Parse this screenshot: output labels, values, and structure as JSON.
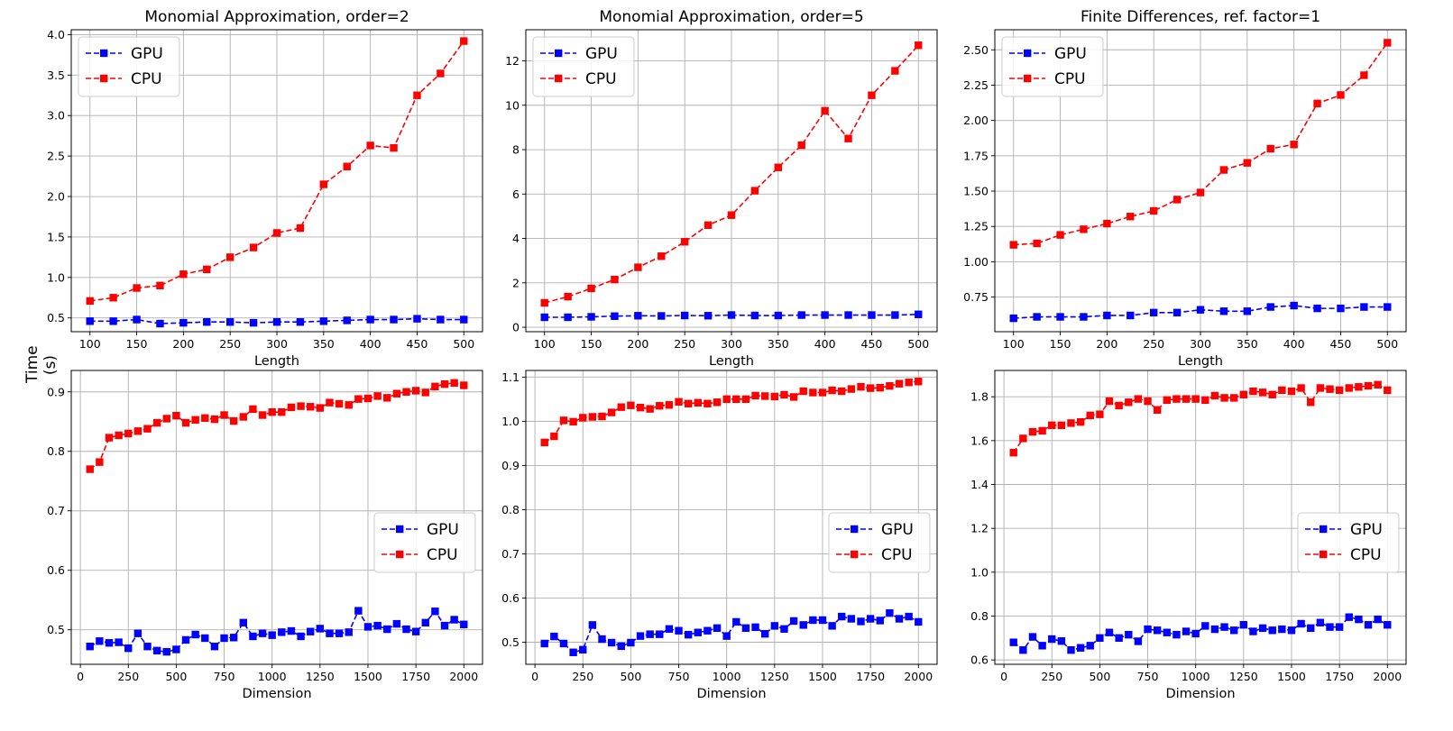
{
  "figure": {
    "ylabel": "Time (s)",
    "colors": {
      "gpu": "#0000ff",
      "cpu": "#ff0000",
      "grid": "#b0b0b0"
    }
  },
  "chart_data": [
    {
      "type": "line",
      "title": "Monomial Approximation, order=2",
      "xlabel": "Length",
      "xlim": [
        80,
        520
      ],
      "ylim": [
        0.33,
        4.06
      ],
      "xticks": [
        100,
        150,
        200,
        250,
        300,
        350,
        400,
        450,
        500
      ],
      "xtick_labels": [
        "100",
        "150",
        "200",
        "250",
        "300",
        "350",
        "400",
        "450",
        "500"
      ],
      "yticks": [
        0.5,
        1.0,
        1.5,
        2.0,
        2.5,
        3.0,
        3.5,
        4.0
      ],
      "ytick_labels": [
        "0.5",
        "1.0",
        "1.5",
        "2.0",
        "2.5",
        "3.0",
        "3.5",
        "4.0"
      ],
      "legend": "upper left",
      "x": [
        100,
        125,
        150,
        175,
        200,
        225,
        250,
        275,
        300,
        325,
        350,
        375,
        400,
        425,
        450,
        475,
        500
      ],
      "series": [
        {
          "name": "GPU",
          "color": "#0000ff",
          "values": [
            0.46,
            0.46,
            0.48,
            0.43,
            0.44,
            0.45,
            0.45,
            0.44,
            0.45,
            0.45,
            0.46,
            0.47,
            0.48,
            0.48,
            0.49,
            0.48,
            0.48
          ]
        },
        {
          "name": "CPU",
          "color": "#ff0000",
          "values": [
            0.71,
            0.75,
            0.87,
            0.9,
            1.04,
            1.1,
            1.25,
            1.37,
            1.55,
            1.61,
            2.15,
            2.37,
            2.63,
            2.6,
            3.25,
            3.52,
            3.92
          ]
        }
      ]
    },
    {
      "type": "line",
      "title": "Monomial Approximation, order=5",
      "xlabel": "Length",
      "xlim": [
        80,
        520
      ],
      "ylim": [
        -0.2,
        13.4
      ],
      "xticks": [
        100,
        150,
        200,
        250,
        300,
        350,
        400,
        450,
        500
      ],
      "xtick_labels": [
        "100",
        "150",
        "200",
        "250",
        "300",
        "350",
        "400",
        "450",
        "500"
      ],
      "yticks": [
        0,
        2,
        4,
        6,
        8,
        10,
        12
      ],
      "ytick_labels": [
        "0",
        "2",
        "4",
        "6",
        "8",
        "10",
        "12"
      ],
      "legend": "upper left",
      "x": [
        100,
        125,
        150,
        175,
        200,
        225,
        250,
        275,
        300,
        325,
        350,
        375,
        400,
        425,
        450,
        475,
        500
      ],
      "series": [
        {
          "name": "GPU",
          "color": "#0000ff",
          "values": [
            0.45,
            0.45,
            0.47,
            0.5,
            0.52,
            0.51,
            0.53,
            0.52,
            0.55,
            0.53,
            0.53,
            0.55,
            0.55,
            0.55,
            0.55,
            0.55,
            0.58
          ]
        },
        {
          "name": "CPU",
          "color": "#ff0000",
          "values": [
            1.1,
            1.38,
            1.75,
            2.15,
            2.7,
            3.2,
            3.85,
            4.6,
            5.05,
            6.15,
            7.2,
            8.2,
            9.75,
            8.5,
            10.45,
            11.55,
            12.7
          ]
        }
      ]
    },
    {
      "type": "line",
      "title": "Finite Differences, ref. factor=1",
      "xlabel": "Length",
      "xlim": [
        80,
        520
      ],
      "ylim": [
        0.505,
        2.642
      ],
      "xticks": [
        100,
        150,
        200,
        250,
        300,
        350,
        400,
        450,
        500
      ],
      "xtick_labels": [
        "100",
        "150",
        "200",
        "250",
        "300",
        "350",
        "400",
        "450",
        "500"
      ],
      "yticks": [
        0.75,
        1.0,
        1.25,
        1.5,
        1.75,
        2.0,
        2.25,
        2.5
      ],
      "ytick_labels": [
        "0.75",
        "1.00",
        "1.25",
        "1.50",
        "1.75",
        "2.00",
        "2.25",
        "2.50"
      ],
      "legend": "upper left",
      "x": [
        100,
        125,
        150,
        175,
        200,
        225,
        250,
        275,
        300,
        325,
        350,
        375,
        400,
        425,
        450,
        475,
        500
      ],
      "series": [
        {
          "name": "GPU",
          "color": "#0000ff",
          "values": [
            0.6,
            0.61,
            0.61,
            0.61,
            0.62,
            0.62,
            0.64,
            0.64,
            0.66,
            0.65,
            0.65,
            0.68,
            0.69,
            0.67,
            0.67,
            0.68,
            0.68
          ]
        },
        {
          "name": "CPU",
          "color": "#ff0000",
          "values": [
            1.12,
            1.13,
            1.19,
            1.23,
            1.27,
            1.32,
            1.36,
            1.44,
            1.49,
            1.65,
            1.7,
            1.8,
            1.83,
            2.12,
            2.18,
            2.32,
            2.55
          ]
        }
      ]
    },
    {
      "type": "line",
      "title": "",
      "xlabel": "Dimension",
      "xlim": [
        -47.5,
        2097.5
      ],
      "ylim": [
        0.442,
        0.936
      ],
      "xticks": [
        0,
        250,
        500,
        750,
        1000,
        1250,
        1500,
        1750,
        2000
      ],
      "xtick_labels": [
        "0",
        "250",
        "500",
        "750",
        "1000",
        "1250",
        "1500",
        "1750",
        "2000"
      ],
      "yticks": [
        0.5,
        0.6,
        0.7,
        0.8,
        0.9
      ],
      "ytick_labels": [
        "0.5",
        "0.6",
        "0.7",
        "0.8",
        "0.9"
      ],
      "legend": "center right",
      "x": [
        50,
        100,
        150,
        200,
        250,
        300,
        350,
        400,
        450,
        500,
        550,
        600,
        650,
        700,
        750,
        800,
        850,
        900,
        950,
        1000,
        1050,
        1100,
        1150,
        1200,
        1250,
        1300,
        1350,
        1400,
        1450,
        1500,
        1550,
        1600,
        1650,
        1700,
        1750,
        1800,
        1850,
        1900,
        1950,
        2000
      ],
      "series": [
        {
          "name": "GPU",
          "color": "#0000ff",
          "values": [
            0.472,
            0.481,
            0.478,
            0.479,
            0.469,
            0.494,
            0.472,
            0.465,
            0.463,
            0.467,
            0.483,
            0.492,
            0.486,
            0.472,
            0.486,
            0.487,
            0.512,
            0.489,
            0.494,
            0.491,
            0.496,
            0.498,
            0.489,
            0.497,
            0.502,
            0.494,
            0.494,
            0.496,
            0.532,
            0.505,
            0.507,
            0.501,
            0.51,
            0.501,
            0.497,
            0.512,
            0.531,
            0.507,
            0.517,
            0.509
          ]
        },
        {
          "name": "CPU",
          "color": "#ff0000",
          "values": [
            0.77,
            0.782,
            0.823,
            0.827,
            0.83,
            0.834,
            0.838,
            0.848,
            0.855,
            0.86,
            0.848,
            0.853,
            0.856,
            0.854,
            0.861,
            0.851,
            0.858,
            0.871,
            0.861,
            0.866,
            0.866,
            0.874,
            0.876,
            0.875,
            0.873,
            0.882,
            0.88,
            0.878,
            0.888,
            0.889,
            0.893,
            0.89,
            0.897,
            0.9,
            0.902,
            0.899,
            0.909,
            0.913,
            0.915,
            0.911
          ]
        }
      ]
    },
    {
      "type": "line",
      "title": "",
      "xlabel": "Dimension",
      "xlim": [
        -47.5,
        2097.5
      ],
      "ylim": [
        0.45,
        1.115
      ],
      "xticks": [
        0,
        250,
        500,
        750,
        1000,
        1250,
        1500,
        1750,
        2000
      ],
      "xtick_labels": [
        "0",
        "250",
        "500",
        "750",
        "1000",
        "1250",
        "1500",
        "1750",
        "2000"
      ],
      "yticks": [
        0.5,
        0.6,
        0.7,
        0.8,
        0.9,
        1.0,
        1.1
      ],
      "ytick_labels": [
        "0.5",
        "0.6",
        "0.7",
        "0.8",
        "0.9",
        "1.0",
        "1.1"
      ],
      "legend": "center right",
      "x": [
        50,
        100,
        150,
        200,
        250,
        300,
        350,
        400,
        450,
        500,
        550,
        600,
        650,
        700,
        750,
        800,
        850,
        900,
        950,
        1000,
        1050,
        1100,
        1150,
        1200,
        1250,
        1300,
        1350,
        1400,
        1450,
        1500,
        1550,
        1600,
        1650,
        1700,
        1750,
        1800,
        1850,
        1900,
        1950,
        2000
      ],
      "series": [
        {
          "name": "GPU",
          "color": "#0000ff",
          "values": [
            0.497,
            0.513,
            0.497,
            0.477,
            0.483,
            0.539,
            0.507,
            0.499,
            0.491,
            0.499,
            0.514,
            0.518,
            0.518,
            0.53,
            0.526,
            0.517,
            0.522,
            0.526,
            0.532,
            0.514,
            0.546,
            0.532,
            0.534,
            0.519,
            0.537,
            0.53,
            0.548,
            0.539,
            0.55,
            0.55,
            0.537,
            0.558,
            0.553,
            0.547,
            0.553,
            0.549,
            0.566,
            0.553,
            0.558,
            0.546
          ]
        },
        {
          "name": "CPU",
          "color": "#ff0000",
          "values": [
            0.952,
            0.966,
            1.002,
            0.999,
            1.008,
            1.01,
            1.011,
            1.02,
            1.032,
            1.036,
            1.031,
            1.028,
            1.035,
            1.037,
            1.044,
            1.04,
            1.042,
            1.04,
            1.043,
            1.05,
            1.05,
            1.05,
            1.058,
            1.057,
            1.056,
            1.06,
            1.055,
            1.068,
            1.065,
            1.065,
            1.07,
            1.068,
            1.073,
            1.078,
            1.075,
            1.076,
            1.08,
            1.085,
            1.088,
            1.09
          ]
        }
      ]
    },
    {
      "type": "line",
      "title": "",
      "xlabel": "Dimension",
      "xlim": [
        -47.5,
        2097.5
      ],
      "ylim": [
        0.58,
        1.92
      ],
      "xticks": [
        0,
        250,
        500,
        750,
        1000,
        1250,
        1500,
        1750,
        2000
      ],
      "xtick_labels": [
        "0",
        "250",
        "500",
        "750",
        "1000",
        "1250",
        "1500",
        "1750",
        "2000"
      ],
      "yticks": [
        0.6,
        0.8,
        1.0,
        1.2,
        1.4,
        1.6,
        1.8
      ],
      "ytick_labels": [
        "0.6",
        "0.8",
        "1.0",
        "1.2",
        "1.4",
        "1.6",
        "1.8"
      ],
      "legend": "center right",
      "x": [
        50,
        100,
        150,
        200,
        250,
        300,
        350,
        400,
        450,
        500,
        550,
        600,
        650,
        700,
        750,
        800,
        850,
        900,
        950,
        1000,
        1050,
        1100,
        1150,
        1200,
        1250,
        1300,
        1350,
        1400,
        1450,
        1500,
        1550,
        1600,
        1650,
        1700,
        1750,
        1800,
        1850,
        1900,
        1950,
        2000
      ],
      "series": [
        {
          "name": "GPU",
          "color": "#0000ff",
          "values": [
            0.68,
            0.645,
            0.705,
            0.665,
            0.695,
            0.686,
            0.645,
            0.655,
            0.665,
            0.7,
            0.725,
            0.7,
            0.715,
            0.685,
            0.74,
            0.735,
            0.725,
            0.715,
            0.73,
            0.72,
            0.755,
            0.74,
            0.75,
            0.735,
            0.76,
            0.73,
            0.745,
            0.735,
            0.74,
            0.735,
            0.765,
            0.745,
            0.77,
            0.75,
            0.75,
            0.795,
            0.785,
            0.76,
            0.785,
            0.76
          ]
        },
        {
          "name": "CPU",
          "color": "#ff0000",
          "values": [
            1.545,
            1.61,
            1.64,
            1.645,
            1.67,
            1.67,
            1.68,
            1.685,
            1.715,
            1.72,
            1.78,
            1.76,
            1.775,
            1.79,
            1.78,
            1.74,
            1.785,
            1.79,
            1.79,
            1.79,
            1.785,
            1.805,
            1.795,
            1.795,
            1.81,
            1.825,
            1.82,
            1.81,
            1.83,
            1.825,
            1.84,
            1.775,
            1.84,
            1.835,
            1.83,
            1.84,
            1.845,
            1.85,
            1.855,
            1.83
          ]
        }
      ]
    }
  ]
}
